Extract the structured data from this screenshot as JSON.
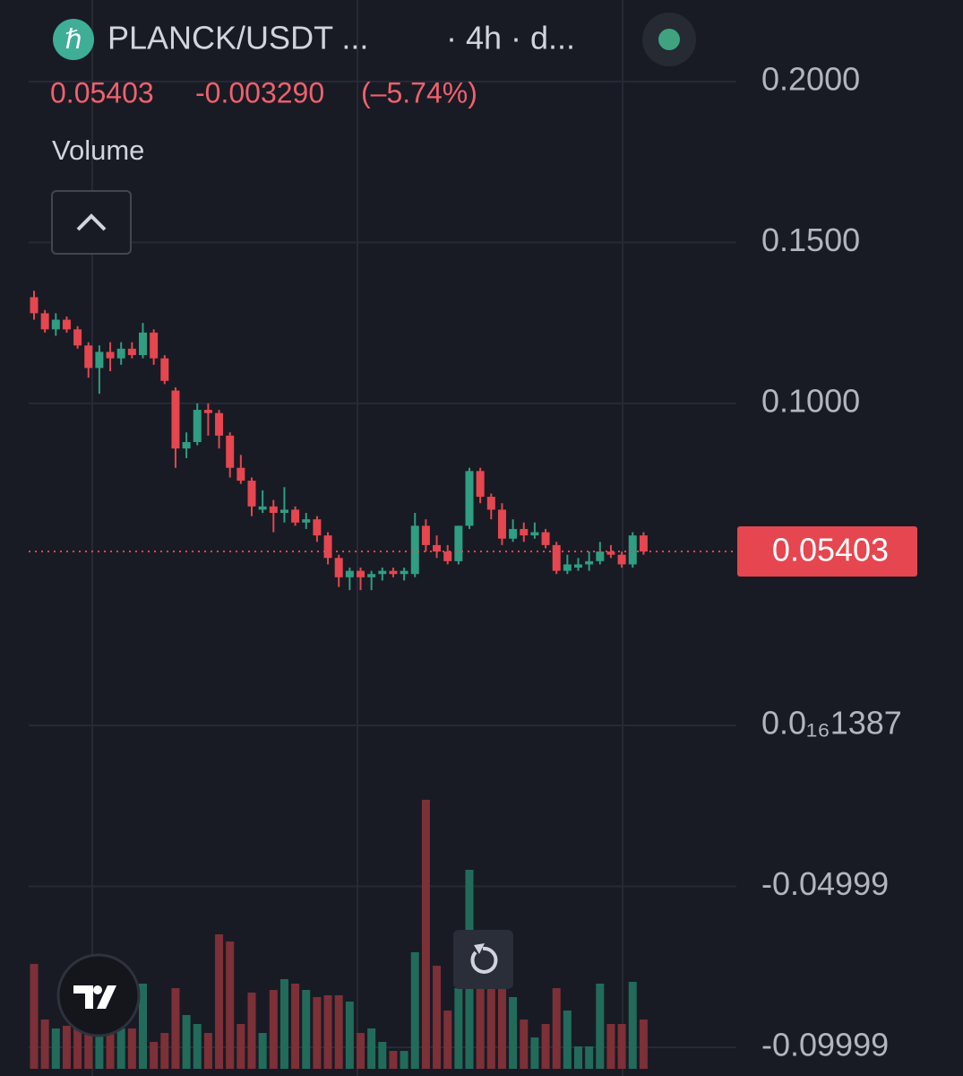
{
  "header": {
    "symbol": "PLANCK/USDT ...",
    "interval": "· 4h · d...",
    "price": "0.05403",
    "change": "-0.003290",
    "change_pct": "(–5.74%)",
    "volume_label": "Volume"
  },
  "chart_data": {
    "type": "candlestick",
    "open": [
      0.133,
      0.128,
      0.123,
      0.126,
      0.123,
      0.118,
      0.111,
      0.116,
      0.114,
      0.117,
      0.115,
      0.122,
      0.114,
      0.104,
      0.086,
      0.088,
      0.098,
      0.097,
      0.09,
      0.08,
      0.076,
      0.067,
      0.068,
      0.066,
      0.067,
      0.063,
      0.064,
      0.059,
      0.052,
      0.046,
      0.048,
      0.046,
      0.047,
      0.048,
      0.047,
      0.047,
      0.062,
      0.056,
      0.054,
      0.051,
      0.062,
      0.079,
      0.071,
      0.067,
      0.058,
      0.061,
      0.059,
      0.06,
      0.056,
      0.048,
      0.049,
      0.05,
      0.051,
      0.054,
      0.053,
      0.05,
      0.059
    ],
    "high": [
      0.135,
      0.129,
      0.128,
      0.127,
      0.124,
      0.119,
      0.118,
      0.119,
      0.119,
      0.119,
      0.125,
      0.123,
      0.115,
      0.105,
      0.091,
      0.1,
      0.1,
      0.098,
      0.091,
      0.084,
      0.077,
      0.073,
      0.07,
      0.074,
      0.068,
      0.066,
      0.065,
      0.06,
      0.053,
      0.049,
      0.049,
      0.048,
      0.049,
      0.049,
      0.049,
      0.066,
      0.064,
      0.059,
      0.056,
      0.062,
      0.08,
      0.08,
      0.072,
      0.069,
      0.064,
      0.063,
      0.063,
      0.061,
      0.057,
      0.053,
      0.052,
      0.054,
      0.057,
      0.056,
      0.054,
      0.06,
      0.06
    ],
    "low": [
      0.126,
      0.122,
      0.121,
      0.122,
      0.117,
      0.108,
      0.103,
      0.11,
      0.112,
      0.114,
      0.114,
      0.112,
      0.106,
      0.08,
      0.083,
      0.087,
      0.09,
      0.086,
      0.077,
      0.075,
      0.065,
      0.066,
      0.06,
      0.063,
      0.062,
      0.061,
      0.057,
      0.05,
      0.043,
      0.042,
      0.042,
      0.042,
      0.045,
      0.046,
      0.045,
      0.046,
      0.054,
      0.052,
      0.05,
      0.05,
      0.061,
      0.069,
      0.064,
      0.056,
      0.057,
      0.057,
      0.058,
      0.055,
      0.047,
      0.047,
      0.048,
      0.048,
      0.05,
      0.052,
      0.049,
      0.049,
      0.053
    ],
    "close": [
      0.128,
      0.123,
      0.126,
      0.123,
      0.118,
      0.111,
      0.116,
      0.114,
      0.117,
      0.115,
      0.122,
      0.114,
      0.107,
      0.086,
      0.088,
      0.098,
      0.097,
      0.09,
      0.08,
      0.076,
      0.068,
      0.068,
      0.066,
      0.067,
      0.063,
      0.064,
      0.059,
      0.052,
      0.046,
      0.048,
      0.046,
      0.047,
      0.048,
      0.047,
      0.048,
      0.062,
      0.056,
      0.054,
      0.051,
      0.062,
      0.079,
      0.071,
      0.067,
      0.058,
      0.061,
      0.059,
      0.06,
      0.056,
      0.048,
      0.05,
      0.05,
      0.051,
      0.054,
      0.053,
      0.05,
      0.059,
      0.054
    ],
    "volume": [
      117,
      55,
      45,
      48,
      50,
      40,
      50,
      40,
      45,
      45,
      95,
      30,
      40,
      90,
      60,
      50,
      40,
      150,
      142,
      50,
      85,
      40,
      88,
      100,
      95,
      88,
      80,
      82,
      82,
      75,
      40,
      45,
      30,
      20,
      20,
      130,
      300,
      115,
      65,
      90,
      222,
      150,
      110,
      100,
      80,
      55,
      35,
      50,
      90,
      65,
      25,
      25,
      95,
      50,
      50,
      97,
      55
    ],
    "up_color": "#2f9e82",
    "down_color": "#e5464f",
    "up_volume_color": "#226b5b",
    "down_volume_color": "#7d3037",
    "last_price": 0.05403,
    "ylim": [
      -0.1089,
      0.2253
    ],
    "yticks": [
      {
        "value": 0.2,
        "label": "0.2000"
      },
      {
        "value": 0.15,
        "label": "0.1500"
      },
      {
        "value": 0.1,
        "label": "0.1000"
      },
      {
        "value": 1.387e-17,
        "label": "0.0₁₆1387"
      },
      -0.04999,
      -0.09999
    ],
    "grid": true
  }
}
